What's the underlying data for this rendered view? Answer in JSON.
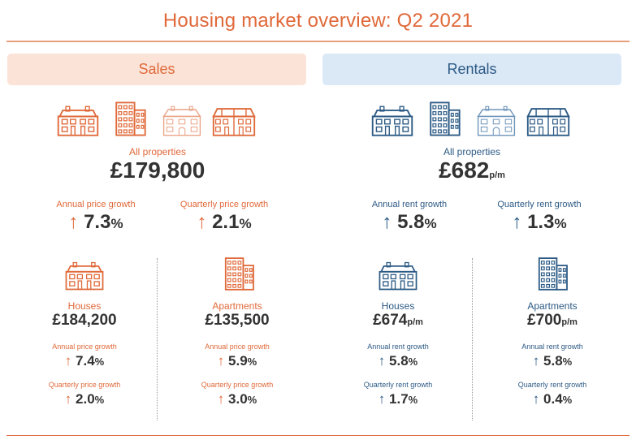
{
  "title": "Housing market overview: Q2 2021",
  "sales": {
    "heading": "Sales",
    "all_label": "All properties",
    "all_value": "£179,800",
    "annual_label": "Annual price growth",
    "annual_value": "7.3",
    "quarterly_label": "Quarterly price growth",
    "quarterly_value": "2.1",
    "houses": {
      "label": "Houses",
      "value": "£184,200",
      "annual_label": "Annual price growth",
      "annual_value": "7.4",
      "quarterly_label": "Quarterly price growth",
      "quarterly_value": "2.0"
    },
    "apartments": {
      "label": "Apartments",
      "value": "£135,500",
      "annual_label": "Annual price growth",
      "annual_value": "5.9",
      "quarterly_label": "Quarterly price growth",
      "quarterly_value": "3.0"
    }
  },
  "rentals": {
    "heading": "Rentals",
    "all_label": "All properties",
    "all_value": "£682",
    "all_unit": "p/m",
    "annual_label": "Annual rent growth",
    "annual_value": "5.8",
    "quarterly_label": "Quarterly rent growth",
    "quarterly_value": "1.3",
    "houses": {
      "label": "Houses",
      "value": "£674",
      "unit": "p/m",
      "annual_label": "Annual rent growth",
      "annual_value": "5.8",
      "quarterly_label": "Quarterly rent growth",
      "quarterly_value": "1.7"
    },
    "apartments": {
      "label": "Apartments",
      "value": "£700",
      "unit": "p/m",
      "annual_label": "Annual rent growth",
      "annual_value": "5.8",
      "quarterly_label": "Quarterly rent growth",
      "quarterly_value": "0.4"
    }
  },
  "percent_sign": "%",
  "arrow_glyph": "↑",
  "colors": {
    "sales": "#e0693a",
    "rentals": "#2c5a85",
    "sales_bg": "#fbe3d7",
    "rentals_bg": "#dbe8f6"
  },
  "icons": [
    "terraced-house-icon",
    "apartment-block-icon",
    "detached-house-icon",
    "semi-detached-house-icon"
  ]
}
